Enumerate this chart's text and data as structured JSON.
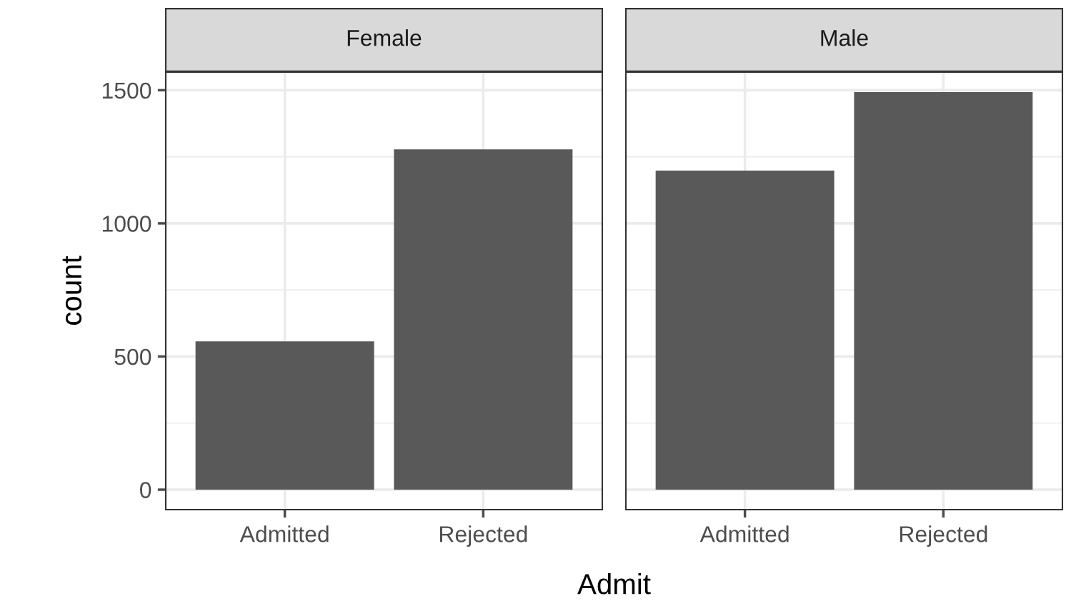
{
  "chart_data": [
    {
      "type": "bar",
      "title": "Female",
      "categories": [
        "Admitted",
        "Rejected"
      ],
      "values": [
        557,
        1278
      ],
      "color": "#595959",
      "xlabel": "Admit",
      "ylabel": "count",
      "ylim": [
        -75,
        1568
      ],
      "yticks": [
        0,
        500,
        1000,
        1500
      ],
      "grid": true
    },
    {
      "type": "bar",
      "title": "Male",
      "categories": [
        "Admitted",
        "Rejected"
      ],
      "values": [
        1198,
        1493
      ],
      "color": "#595959",
      "ylim": [
        -75,
        1568
      ],
      "yticks": [
        0,
        500,
        1000,
        1500
      ],
      "grid": true,
      "tick_labels": "x"
    }
  ]
}
